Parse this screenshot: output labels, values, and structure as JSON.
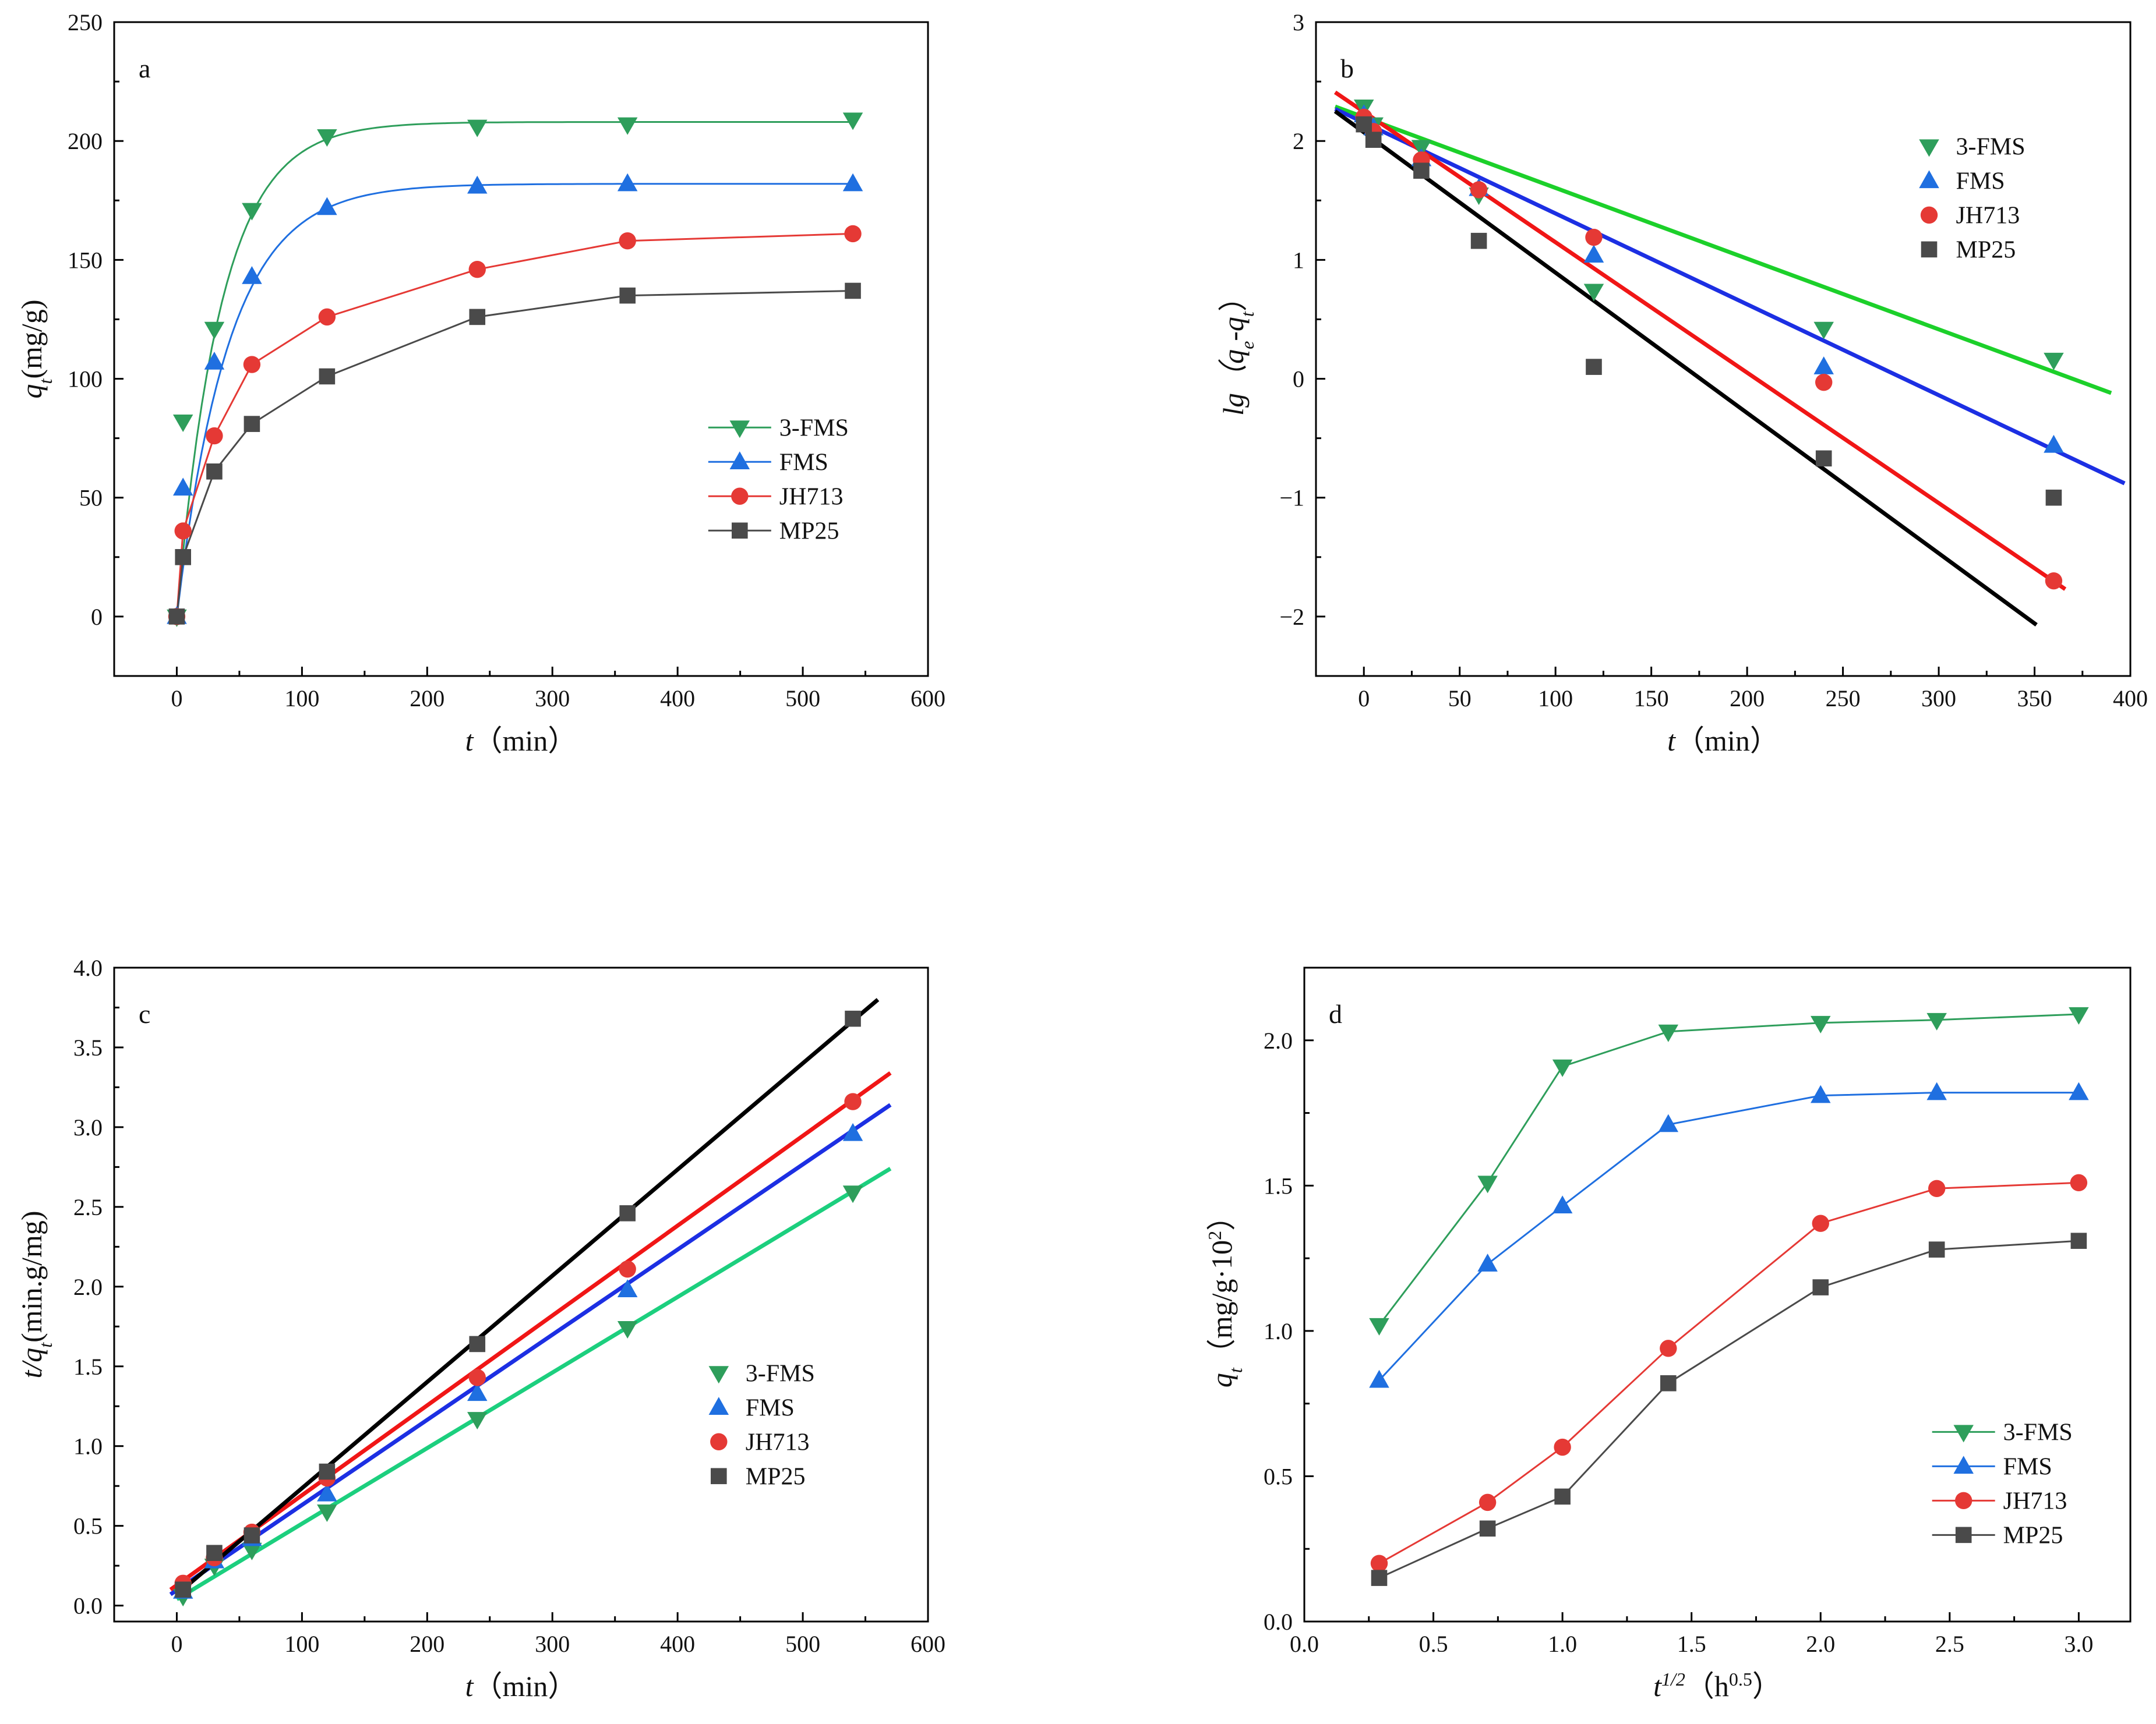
{
  "colors": {
    "3-FMS": "#2e9e5b",
    "FMS": "#1f6fe0",
    "JH713": "#e53935",
    "MP25": "#4a4a4a"
  },
  "fit_colors": {
    "3-FMS": "#1cd02a",
    "FMS": "#1c2fe3",
    "JH713": "#f01616",
    "MP25": "#000000"
  },
  "fit_colors_c": {
    "3-FMS": "#1ccf7e",
    "FMS": "#1c2fe3",
    "JH713": "#f01616",
    "MP25": "#000000"
  },
  "markers": {
    "3-FMS": "triangle-down",
    "FMS": "triangle-up",
    "JH713": "circle",
    "MP25": "square"
  },
  "chart_data": [
    {
      "panel_label": "a",
      "type": "line",
      "xlabel": {
        "italic": "t",
        "rest": "（min）"
      },
      "ylabel": {
        "italic": "q",
        "sub": "t",
        "rest": "(mg/g)"
      },
      "xlim": [
        -50,
        600
      ],
      "ylim": [
        -25,
        250
      ],
      "xticks": [
        0,
        100,
        200,
        300,
        400,
        500,
        600
      ],
      "yticks": [
        0,
        50,
        100,
        150,
        200,
        250
      ],
      "xticklabels": [
        "0",
        "100",
        "200",
        "300",
        "400",
        "500",
        "600"
      ],
      "yticklabels": [
        "0",
        "50",
        "100",
        "150",
        "200",
        "250"
      ],
      "legend_position": "center-right",
      "legend_style": "line-marker",
      "x": [
        0,
        5,
        30,
        60,
        120,
        240,
        360,
        540
      ],
      "series": [
        {
          "name": "3-FMS",
          "values": [
            0,
            82,
            121,
            171,
            202,
            206,
            207,
            209
          ],
          "fit": {
            "model": "pfo-smooth",
            "qe": 208,
            "k": 0.028
          }
        },
        {
          "name": "FMS",
          "values": [
            0,
            54,
            107,
            143,
            172,
            181,
            182,
            182
          ],
          "fit": {
            "model": "pfo-smooth",
            "qe": 182,
            "k": 0.024
          }
        },
        {
          "name": "JH713",
          "values": [
            0,
            36,
            76,
            106,
            126,
            146,
            158,
            161
          ],
          "fit": {
            "model": "interp"
          }
        },
        {
          "name": "MP25",
          "values": [
            0,
            25,
            61,
            81,
            101,
            126,
            135,
            137
          ],
          "fit": {
            "model": "interp"
          }
        }
      ]
    },
    {
      "panel_label": "b",
      "type": "scatter",
      "xlabel": {
        "italic": "t",
        "rest": "（min）"
      },
      "ylabel": {
        "italic": "lg",
        "mid": "（q",
        "sub1": "e",
        "mid2": "-q",
        "sub2": "t",
        "rest": "）"
      },
      "xlim": [
        -25,
        400
      ],
      "ylim": [
        -2.5,
        3
      ],
      "xticks": [
        0,
        50,
        100,
        150,
        200,
        250,
        300,
        350,
        400
      ],
      "yticks": [
        -2,
        -1,
        0,
        1,
        2,
        3
      ],
      "xticklabels": [
        "0",
        "50",
        "100",
        "150",
        "200",
        "250",
        "300",
        "350",
        "400"
      ],
      "yticklabels": [
        "−2",
        "−1",
        "0",
        "1",
        "2",
        "3"
      ],
      "legend_position": "top-right",
      "legend_style": "marker",
      "x": [
        0,
        5,
        30,
        60,
        120,
        240,
        360
      ],
      "series": [
        {
          "name": "3-FMS",
          "values": [
            2.29,
            2.14,
            1.95,
            1.55,
            0.74,
            0.42,
            0.16
          ],
          "fit": {
            "x": [
              -15,
              390
            ],
            "y": [
              2.29,
              -0.12
            ]
          }
        },
        {
          "name": "FMS",
          "values": [
            2.22,
            2.11,
            1.85,
            1.6,
            1.04,
            0.1,
            -0.56
          ],
          "fit": {
            "x": [
              -15,
              397
            ],
            "y": [
              2.27,
              -0.88
            ]
          }
        },
        {
          "name": "JH713",
          "values": [
            2.2,
            2.08,
            1.84,
            1.59,
            1.19,
            -0.03,
            -1.7
          ],
          "fit": {
            "x": [
              -15,
              366
            ],
            "y": [
              2.41,
              -1.77
            ]
          }
        },
        {
          "name": "MP25",
          "values": [
            2.14,
            2.01,
            1.75,
            1.16,
            0.1,
            -0.67,
            -1.0
          ],
          "fit": {
            "x": [
              -15,
              351
            ],
            "y": [
              2.25,
              -2.07
            ]
          }
        }
      ]
    },
    {
      "panel_label": "c",
      "type": "scatter",
      "xlabel": {
        "italic": "t",
        "rest": "（min）"
      },
      "ylabel": {
        "italic": "t/q",
        "sub": "t",
        "rest": "(min.g/mg)"
      },
      "xlim": [
        -50,
        600
      ],
      "ylim": [
        -0.1,
        4.0
      ],
      "xticks": [
        0,
        100,
        200,
        300,
        400,
        500,
        600
      ],
      "yticks": [
        0.0,
        0.5,
        1.0,
        1.5,
        2.0,
        2.5,
        3.0,
        3.5,
        4.0
      ],
      "xticklabels": [
        "0",
        "100",
        "200",
        "300",
        "400",
        "500",
        "600"
      ],
      "yticklabels": [
        "0.0",
        "0.5",
        "1.0",
        "1.5",
        "2.0",
        "2.5",
        "3.0",
        "3.5",
        "4.0"
      ],
      "legend_position": "center-right",
      "legend_style": "marker",
      "x": [
        5,
        30,
        60,
        120,
        240,
        360,
        540
      ],
      "series": [
        {
          "name": "3-FMS",
          "values": [
            0.06,
            0.25,
            0.35,
            0.59,
            1.17,
            1.74,
            2.59
          ],
          "fit": {
            "x": [
              0,
              570
            ],
            "y": [
              0.04,
              2.74
            ]
          }
        },
        {
          "name": "FMS",
          "values": [
            0.09,
            0.28,
            0.42,
            0.7,
            1.33,
            1.98,
            2.96
          ],
          "fit": {
            "x": [
              -5,
              570
            ],
            "y": [
              0.07,
              3.14
            ]
          }
        },
        {
          "name": "JH713",
          "values": [
            0.14,
            0.3,
            0.46,
            0.8,
            1.43,
            2.11,
            3.16
          ],
          "fit": {
            "x": [
              -5,
              570
            ],
            "y": [
              0.1,
              3.34
            ]
          }
        },
        {
          "name": "MP25",
          "values": [
            0.1,
            0.33,
            0.44,
            0.84,
            1.64,
            2.46,
            3.68
          ],
          "fit": {
            "x": [
              0,
              560
            ],
            "y": [
              0.07,
              3.8
            ]
          }
        }
      ]
    },
    {
      "panel_label": "d",
      "type": "line",
      "xlabel": {
        "italic": "t",
        "sup": "1/2",
        "rest": "（h",
        "sup2": "0.5",
        "rest2": "）"
      },
      "ylabel": {
        "italic": "q",
        "sub": "t",
        "rest": "（mg/g·10",
        "sup": "2",
        "rest2": "）"
      },
      "xlim": [
        0,
        3.2
      ],
      "ylim": [
        0,
        2.25
      ],
      "xticks": [
        0.0,
        0.5,
        1.0,
        1.5,
        2.0,
        2.5,
        3.0
      ],
      "yticks": [
        0.0,
        0.5,
        1.0,
        1.5,
        2.0
      ],
      "xticklabels": [
        "0.0",
        "0.5",
        "1.0",
        "1.5",
        "2.0",
        "2.5",
        "3.0"
      ],
      "yticklabels": [
        "0.0",
        "0.5",
        "1.0",
        "1.5",
        "2.0"
      ],
      "legend_position": "bottom-right",
      "legend_style": "line-marker",
      "x": [
        0.29,
        0.71,
        1.0,
        1.41,
        2.0,
        2.45,
        3.0
      ],
      "series": [
        {
          "name": "3-FMS",
          "values": [
            1.02,
            1.51,
            1.91,
            2.03,
            2.06,
            2.07,
            2.09
          ]
        },
        {
          "name": "FMS",
          "values": [
            0.83,
            1.23,
            1.43,
            1.71,
            1.81,
            1.82,
            1.82
          ]
        },
        {
          "name": "JH713",
          "values": [
            0.2,
            0.41,
            0.6,
            0.94,
            1.37,
            1.49,
            1.51
          ]
        },
        {
          "name": "MP25",
          "values": [
            0.15,
            0.32,
            0.43,
            0.82,
            1.15,
            1.28,
            1.31
          ]
        }
      ]
    }
  ]
}
